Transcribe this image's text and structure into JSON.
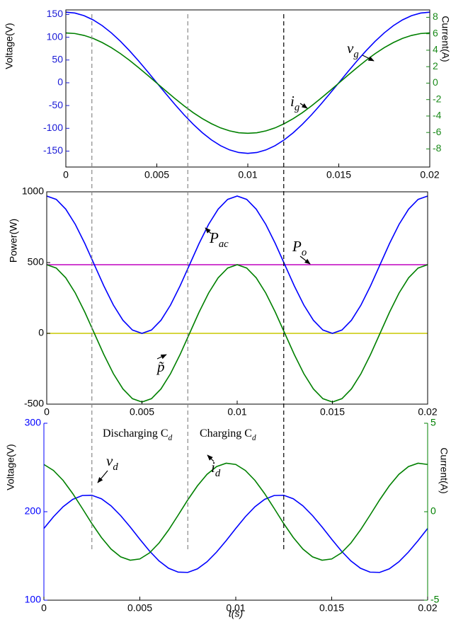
{
  "chart_data": [
    {
      "type": "line",
      "ylabel": "Voltage(V)",
      "y2label": "Current(A)",
      "ycolor": "#1a1ad6",
      "y2color": "#1a8a1a",
      "x": [
        0,
        0.0005,
        0.001,
        0.0015,
        0.002,
        0.0025,
        0.003,
        0.0035,
        0.004,
        0.0045,
        0.005,
        0.0055,
        0.006,
        0.0065,
        0.007,
        0.0075,
        0.008,
        0.0085,
        0.009,
        0.0095,
        0.01,
        0.0105,
        0.011,
        0.0115,
        0.012,
        0.0125,
        0.013,
        0.0135,
        0.014,
        0.0145,
        0.015,
        0.0155,
        0.016,
        0.0165,
        0.017,
        0.0175,
        0.018,
        0.0185,
        0.019,
        0.0195,
        0.02
      ],
      "series": [
        {
          "color": "#0000ff",
          "values": [
            155,
            153.1,
            147.4,
            138.1,
            125.4,
            109.6,
            91.1,
            70.4,
            47.9,
            24.2,
            0,
            -24.2,
            -47.9,
            -70.4,
            -91.1,
            -109.6,
            -125.4,
            -138.1,
            -147.4,
            -153.1,
            -155,
            -153.1,
            -147.4,
            -138.1,
            -125.4,
            -109.6,
            -91.1,
            -70.4,
            -47.9,
            -24.2,
            0,
            24.2,
            47.9,
            70.4,
            91.1,
            109.6,
            125.4,
            138.1,
            147.4,
            153.1,
            155
          ]
        },
        {
          "color": "#008000",
          "axis": "y2",
          "values": [
            6.1,
            6.03,
            5.8,
            5.44,
            4.93,
            4.31,
            3.59,
            2.77,
            1.88,
            0.95,
            0,
            -0.95,
            -1.88,
            -2.77,
            -3.59,
            -4.31,
            -4.93,
            -5.44,
            -5.8,
            -6.03,
            -6.1,
            -6.03,
            -5.8,
            -5.44,
            -4.93,
            -4.31,
            -3.59,
            -2.77,
            -1.88,
            -0.95,
            0,
            0.95,
            1.88,
            2.77,
            3.59,
            4.31,
            4.93,
            5.44,
            5.8,
            6.03,
            6.1
          ]
        }
      ],
      "xlim": [
        0,
        0.02
      ],
      "xticks": [
        0,
        0.005,
        0.01,
        0.015,
        0.02
      ],
      "ylim": [
        -185,
        160
      ],
      "yticks": [
        -150,
        -100,
        -50,
        0,
        50,
        100,
        150
      ],
      "y2lim": [
        -10.2,
        8.9
      ],
      "y2ticks": [
        -8,
        -6,
        -4,
        -2,
        0,
        2,
        4,
        6,
        8
      ],
      "annotations": [
        {
          "text": "v",
          "sub": "g"
        },
        {
          "text": "i",
          "sub": "g"
        }
      ]
    },
    {
      "type": "line",
      "ylabel": "Power(W)",
      "ycolor": "#000000",
      "x": [
        0,
        0.0005,
        0.001,
        0.0015,
        0.002,
        0.0025,
        0.003,
        0.0035,
        0.004,
        0.0045,
        0.005,
        0.0055,
        0.006,
        0.0065,
        0.007,
        0.0075,
        0.008,
        0.0085,
        0.009,
        0.0095,
        0.01,
        0.0105,
        0.011,
        0.0115,
        0.012,
        0.0125,
        0.013,
        0.0135,
        0.014,
        0.0145,
        0.015,
        0.0155,
        0.016,
        0.0165,
        0.017,
        0.0175,
        0.018,
        0.0185,
        0.019,
        0.0195,
        0.02
      ],
      "series": [
        {
          "color": "#c8c800",
          "values": [
            0,
            0,
            0,
            0,
            0,
            0,
            0,
            0,
            0,
            0,
            0,
            0,
            0,
            0,
            0,
            0,
            0,
            0,
            0,
            0,
            0,
            0,
            0,
            0,
            0,
            0,
            0,
            0,
            0,
            0,
            0,
            0,
            0,
            0,
            0,
            0,
            0,
            0,
            0,
            0,
            0
          ]
        },
        {
          "color": "#c000c0",
          "values": [
            485,
            485,
            485,
            485,
            485,
            485,
            485,
            485,
            485,
            485,
            485,
            485,
            485,
            485,
            485,
            485,
            485,
            485,
            485,
            485,
            485,
            485,
            485,
            485,
            485,
            485,
            485,
            485,
            485,
            485,
            485,
            485,
            485,
            485,
            485,
            485,
            485,
            485,
            485,
            485,
            485
          ]
        },
        {
          "color": "#0000ff",
          "values": [
            970,
            946.3,
            877.4,
            770.1,
            634.9,
            485,
            335.1,
            199.9,
            92.6,
            23.7,
            0,
            23.7,
            92.6,
            199.9,
            335.1,
            485,
            634.9,
            770.1,
            877.4,
            946.3,
            970,
            946.3,
            877.4,
            770.1,
            634.9,
            485,
            335.1,
            199.9,
            92.6,
            23.7,
            0,
            23.7,
            92.6,
            199.9,
            335.1,
            485,
            634.9,
            770.1,
            877.4,
            946.3,
            970
          ]
        },
        {
          "color": "#008000",
          "values": [
            485,
            461.3,
            392.4,
            285.1,
            149.9,
            0,
            -149.9,
            -285.1,
            -392.4,
            -461.3,
            -485,
            -461.3,
            -392.4,
            -285.1,
            -149.9,
            0,
            149.9,
            285.1,
            392.4,
            461.3,
            485,
            461.3,
            392.4,
            285.1,
            149.9,
            0,
            -149.9,
            -285.1,
            -392.4,
            -461.3,
            -485,
            -461.3,
            -392.4,
            -285.1,
            -149.9,
            0,
            149.9,
            285.1,
            392.4,
            461.3,
            485
          ]
        }
      ],
      "xlim": [
        0,
        0.02
      ],
      "xticks": [
        0,
        0.005,
        0.01,
        0.015,
        0.02
      ],
      "ylim": [
        -500,
        1000
      ],
      "yticks": [
        -500,
        0,
        500,
        1000
      ],
      "annotations": [
        {
          "text": "P",
          "sub": "ac"
        },
        {
          "text": "P",
          "sub": "o"
        },
        {
          "text": "p̃",
          "sub": ""
        },
        {
          "text": "Discharging C",
          "sub": "d"
        },
        {
          "text": "Charging C",
          "sub": "d"
        }
      ]
    },
    {
      "type": "line",
      "ylabel": "Voltage(V)",
      "y2label": "Current(A)",
      "xlabel": "t(s)",
      "ycolor": "#0000ff",
      "y2color": "#008000",
      "x": [
        0,
        0.0005,
        0.001,
        0.0015,
        0.002,
        0.0025,
        0.003,
        0.0035,
        0.004,
        0.0045,
        0.005,
        0.0055,
        0.006,
        0.0065,
        0.007,
        0.0075,
        0.008,
        0.0085,
        0.009,
        0.0095,
        0.01,
        0.0105,
        0.011,
        0.0115,
        0.012,
        0.0125,
        0.013,
        0.0135,
        0.014,
        0.0145,
        0.015,
        0.0155,
        0.016,
        0.0165,
        0.017,
        0.0175,
        0.018,
        0.0185,
        0.019,
        0.0195,
        0.02
      ],
      "series": [
        {
          "color": "#0000ff",
          "values": [
            181.1,
            194.3,
            205.6,
            213.9,
            218.3,
            218.6,
            214.6,
            206.6,
            195.6,
            182.7,
            168.9,
            155.7,
            144.4,
            136.1,
            131.7,
            131.4,
            135.4,
            143.4,
            154.4,
            167.3,
            181.1,
            194.3,
            205.6,
            213.9,
            218.3,
            218.6,
            214.6,
            206.6,
            195.6,
            182.7,
            168.9,
            155.7,
            144.4,
            136.1,
            131.7,
            131.4,
            135.4,
            143.4,
            154.4,
            167.3,
            181.1
          ]
        },
        {
          "color": "#008000",
          "axis": "y2",
          "values": [
            2.67,
            2.33,
            1.77,
            1.03,
            0.19,
            -0.67,
            -1.46,
            -2.11,
            -2.55,
            -2.74,
            -2.67,
            -2.33,
            -1.77,
            -1.03,
            -0.19,
            0.67,
            1.46,
            2.11,
            2.55,
            2.74,
            2.67,
            2.33,
            1.77,
            1.03,
            0.19,
            -0.67,
            -1.46,
            -2.11,
            -2.55,
            -2.74,
            -2.67,
            -2.33,
            -1.77,
            -1.03,
            -0.19,
            0.67,
            1.46,
            2.11,
            2.55,
            2.74,
            2.67
          ]
        }
      ],
      "xlim": [
        0,
        0.02
      ],
      "xticks": [
        0,
        0.005,
        0.01,
        0.015,
        0.02
      ],
      "ylim": [
        100,
        300
      ],
      "yticks": [
        100,
        200,
        300
      ],
      "y2lim": [
        -5,
        5
      ],
      "y2ticks": [
        -5,
        0,
        5
      ],
      "annotations": [
        {
          "text": "v",
          "sub": "d"
        },
        {
          "text": "i",
          "sub": "d"
        }
      ]
    }
  ],
  "vlines": [
    {
      "value": 0.0025,
      "color": "#888888"
    },
    {
      "value": 0.0075,
      "color": "#888888"
    },
    {
      "value": 0.0125,
      "color": "#000000"
    }
  ]
}
